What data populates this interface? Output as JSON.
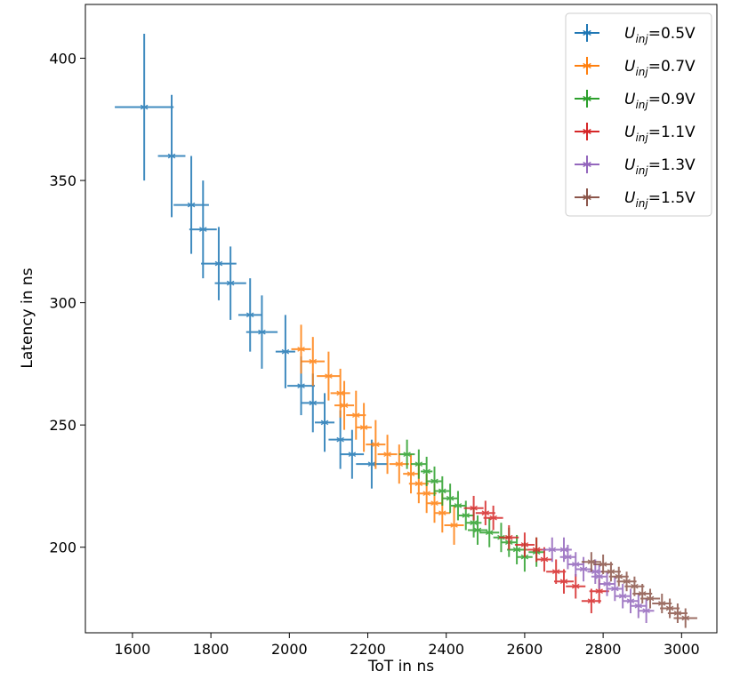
{
  "chart_data": {
    "type": "scatter",
    "title": "",
    "xlabel": "ToT in ns",
    "ylabel": "Latency in ns",
    "xlim": [
      1480,
      3090
    ],
    "ylim": [
      165,
      422
    ],
    "xticks": [
      1600,
      1800,
      2000,
      2200,
      2400,
      2600,
      2800,
      3000
    ],
    "yticks": [
      200,
      250,
      300,
      350,
      400
    ],
    "grid": false,
    "legend_position": "top-right",
    "legend": [
      {
        "prefix": "U",
        "sub": "inj",
        "suffix": "=0.5V"
      },
      {
        "prefix": "U",
        "sub": "inj",
        "suffix": "=0.7V"
      },
      {
        "prefix": "U",
        "sub": "inj",
        "suffix": "=0.9V"
      },
      {
        "prefix": "U",
        "sub": "inj",
        "suffix": "=1.1V"
      },
      {
        "prefix": "U",
        "sub": "inj",
        "suffix": "=1.3V"
      },
      {
        "prefix": "U",
        "sub": "inj",
        "suffix": "=1.5V"
      }
    ],
    "series": [
      {
        "color": "#1f77b4",
        "points": [
          [
            1630,
            380,
            75,
            30
          ],
          [
            1700,
            360,
            35,
            25
          ],
          [
            1750,
            340,
            45,
            20
          ],
          [
            1780,
            330,
            35,
            20
          ],
          [
            1820,
            316,
            45,
            15
          ],
          [
            1850,
            308,
            40,
            15
          ],
          [
            1900,
            295,
            30,
            15
          ],
          [
            1930,
            288,
            40,
            15
          ],
          [
            1990,
            280,
            25,
            15
          ],
          [
            2030,
            266,
            35,
            12
          ],
          [
            2060,
            259,
            30,
            12
          ],
          [
            2090,
            251,
            25,
            12
          ],
          [
            2130,
            244,
            30,
            12
          ],
          [
            2160,
            238,
            30,
            10
          ],
          [
            2210,
            234,
            40,
            10
          ]
        ]
      },
      {
        "color": "#ff7f0e",
        "points": [
          [
            2030,
            281,
            25,
            10
          ],
          [
            2060,
            276,
            30,
            10
          ],
          [
            2100,
            270,
            30,
            10
          ],
          [
            2130,
            263,
            25,
            10
          ],
          [
            2140,
            258,
            25,
            10
          ],
          [
            2170,
            254,
            25,
            10
          ],
          [
            2190,
            249,
            20,
            10
          ],
          [
            2220,
            242,
            25,
            10
          ],
          [
            2250,
            238,
            25,
            8
          ],
          [
            2280,
            234,
            25,
            8
          ],
          [
            2310,
            230,
            20,
            8
          ],
          [
            2330,
            226,
            25,
            8
          ],
          [
            2350,
            222,
            25,
            8
          ],
          [
            2370,
            218,
            20,
            8
          ],
          [
            2390,
            214,
            20,
            8
          ],
          [
            2420,
            209,
            25,
            8
          ]
        ]
      },
      {
        "color": "#2ca02c",
        "points": [
          [
            2300,
            238,
            20,
            6
          ],
          [
            2330,
            234,
            20,
            6
          ],
          [
            2350,
            231,
            15,
            6
          ],
          [
            2370,
            227,
            20,
            6
          ],
          [
            2390,
            223,
            20,
            6
          ],
          [
            2410,
            220,
            20,
            6
          ],
          [
            2430,
            217,
            20,
            6
          ],
          [
            2450,
            213,
            20,
            6
          ],
          [
            2470,
            210,
            20,
            6
          ],
          [
            2480,
            207,
            25,
            6
          ],
          [
            2510,
            206,
            25,
            6
          ],
          [
            2540,
            204,
            20,
            6
          ],
          [
            2560,
            202,
            20,
            6
          ],
          [
            2580,
            199,
            25,
            6
          ],
          [
            2600,
            196,
            20,
            6
          ],
          [
            2630,
            198,
            20,
            6
          ]
        ]
      },
      {
        "color": "#d62728",
        "points": [
          [
            2470,
            216,
            25,
            5
          ],
          [
            2500,
            214,
            25,
            5
          ],
          [
            2520,
            212,
            25,
            5
          ],
          [
            2560,
            204,
            25,
            5
          ],
          [
            2600,
            201,
            25,
            5
          ],
          [
            2630,
            199,
            25,
            5
          ],
          [
            2650,
            195,
            20,
            5
          ],
          [
            2680,
            190,
            25,
            5
          ],
          [
            2700,
            186,
            25,
            5
          ],
          [
            2730,
            184,
            25,
            5
          ],
          [
            2770,
            178,
            25,
            5
          ],
          [
            2790,
            182,
            25,
            5
          ]
        ]
      },
      {
        "color": "#9467bd",
        "points": [
          [
            2670,
            199,
            25,
            5
          ],
          [
            2700,
            199,
            20,
            5
          ],
          [
            2710,
            196,
            20,
            5
          ],
          [
            2730,
            193,
            20,
            5
          ],
          [
            2750,
            191,
            20,
            5
          ],
          [
            2780,
            190,
            20,
            5
          ],
          [
            2790,
            188,
            20,
            5
          ],
          [
            2810,
            185,
            20,
            5
          ],
          [
            2830,
            183,
            20,
            5
          ],
          [
            2850,
            180,
            20,
            5
          ],
          [
            2870,
            178,
            20,
            5
          ],
          [
            2890,
            176,
            20,
            5
          ],
          [
            2910,
            174,
            20,
            5
          ]
        ]
      },
      {
        "color": "#8c564b",
        "points": [
          [
            2770,
            194,
            25,
            4
          ],
          [
            2800,
            193,
            25,
            4
          ],
          [
            2820,
            190,
            25,
            4
          ],
          [
            2840,
            188,
            25,
            4
          ],
          [
            2860,
            186,
            25,
            4
          ],
          [
            2880,
            184,
            25,
            4
          ],
          [
            2900,
            181,
            25,
            4
          ],
          [
            2920,
            179,
            25,
            4
          ],
          [
            2950,
            177,
            25,
            4
          ],
          [
            2970,
            175,
            25,
            4
          ],
          [
            2990,
            173,
            25,
            4
          ],
          [
            3010,
            171,
            30,
            4
          ]
        ]
      }
    ]
  }
}
